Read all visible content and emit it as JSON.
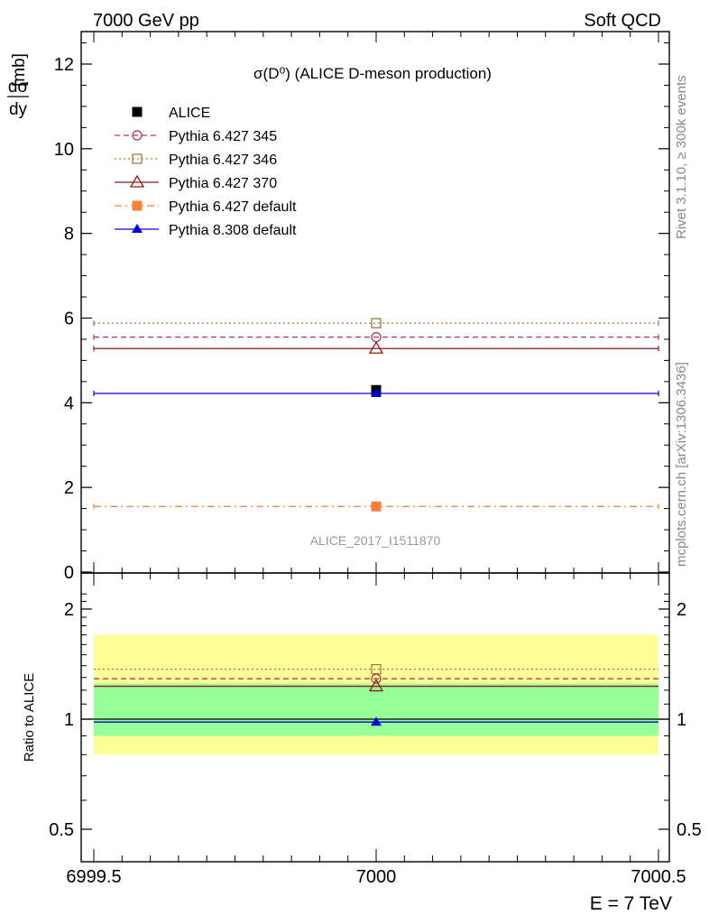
{
  "header": {
    "left": "7000 GeV pp",
    "right": "Soft QCD"
  },
  "side_labels": {
    "rivet": "Rivet 3.1.10, ≥ 300k events",
    "mcplots": "mcplots.cern.ch [arXiv:1306.3436]"
  },
  "chart_data": [
    {
      "type": "scatter",
      "title": "σ(D⁰) (ALICE D-meson production)",
      "ylabel": "dσ/dy [mb]",
      "xlim": [
        6999.5,
        7000.5
      ],
      "ylim": [
        0,
        12.8
      ],
      "yticks": [
        "0",
        "2",
        "4",
        "6",
        "8",
        "10",
        "12"
      ],
      "analysis_label": "ALICE_2017_I1511870",
      "legend_placement": "top-left",
      "series": [
        {
          "name": "ALICE",
          "color": "#000000",
          "marker": "filled-square",
          "line": "none",
          "x": 7000,
          "y": 4.3
        },
        {
          "name": "Pythia 6.427 345",
          "color": "#b2374f",
          "marker": "open-circle",
          "line": "dashed",
          "x": 7000,
          "y": 5.55
        },
        {
          "name": "Pythia 6.427 346",
          "color": "#a07c3c",
          "marker": "open-square",
          "line": "dotted",
          "x": 7000,
          "y": 5.88
        },
        {
          "name": "Pythia 6.427 370",
          "color": "#8b1a1a",
          "marker": "open-triangle",
          "line": "solid",
          "x": 7000,
          "y": 5.28
        },
        {
          "name": "Pythia 6.427 default",
          "color": "#f7803a",
          "marker": "filled-square",
          "line": "dashdot",
          "x": 7000,
          "y": 1.55
        },
        {
          "name": "Pythia 8.308 default",
          "color": "#0000dd",
          "marker": "filled-triangle",
          "line": "solid",
          "x": 7000,
          "y": 4.22
        }
      ]
    },
    {
      "type": "scatter",
      "ylabel": "Ratio to ALICE",
      "xlabel": "E = 7 TeV",
      "xlim": [
        6999.5,
        7000.5
      ],
      "xticks": [
        "6999.5",
        "7000",
        "7000.5"
      ],
      "ylim": [
        0.35,
        2.3
      ],
      "yticks": [
        "0.5",
        "1",
        "2"
      ],
      "bands": [
        {
          "name": "total uncertainty",
          "color": "#ffff99",
          "low": 0.8,
          "high": 1.7
        },
        {
          "name": "stat uncertainty",
          "color": "#99ff99",
          "low": 0.9,
          "high": 1.25
        }
      ],
      "series": [
        {
          "name": "ALICE",
          "color": "#000000",
          "line": "solid",
          "marker": "none",
          "x": 7000,
          "y": 1.0
        },
        {
          "name": "Pythia 6.427 345",
          "color": "#b2374f",
          "line": "dashed",
          "marker": "open-circle",
          "x": 7000,
          "y": 1.29
        },
        {
          "name": "Pythia 6.427 346",
          "color": "#a07c3c",
          "line": "dotted",
          "marker": "open-square",
          "x": 7000,
          "y": 1.37
        },
        {
          "name": "Pythia 6.427 370",
          "color": "#8b1a1a",
          "line": "solid",
          "marker": "open-triangle",
          "x": 7000,
          "y": 1.23
        },
        {
          "name": "Pythia 8.308 default",
          "color": "#0000dd",
          "line": "solid",
          "marker": "filled-triangle",
          "x": 7000,
          "y": 0.982
        }
      ]
    }
  ]
}
